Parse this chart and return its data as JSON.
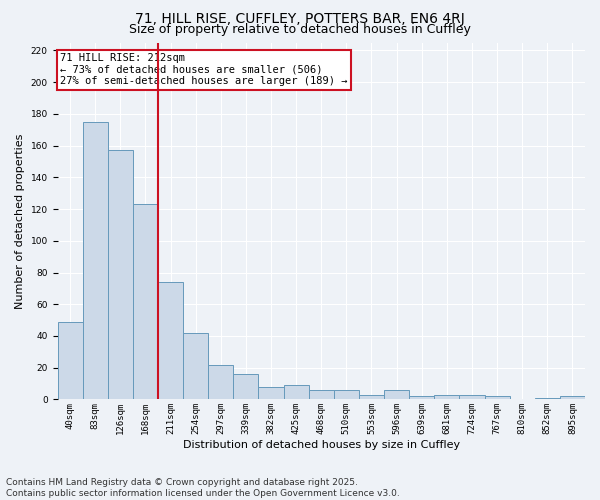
{
  "title_line1": "71, HILL RISE, CUFFLEY, POTTERS BAR, EN6 4RJ",
  "title_line2": "Size of property relative to detached houses in Cuffley",
  "xlabel": "Distribution of detached houses by size in Cuffley",
  "ylabel": "Number of detached properties",
  "categories": [
    "40sqm",
    "83sqm",
    "126sqm",
    "168sqm",
    "211sqm",
    "254sqm",
    "297sqm",
    "339sqm",
    "382sqm",
    "425sqm",
    "468sqm",
    "510sqm",
    "553sqm",
    "596sqm",
    "639sqm",
    "681sqm",
    "724sqm",
    "767sqm",
    "810sqm",
    "852sqm",
    "895sqm"
  ],
  "values": [
    49,
    175,
    157,
    123,
    74,
    42,
    22,
    16,
    8,
    9,
    6,
    6,
    3,
    6,
    2,
    3,
    3,
    2,
    0,
    1,
    2
  ],
  "bar_color": "#ccd9e8",
  "bar_edge_color": "#6699bb",
  "highlight_line_index": 3.5,
  "highlight_color": "#cc1122",
  "annotation_text": "71 HILL RISE: 212sqm\n← 73% of detached houses are smaller (506)\n27% of semi-detached houses are larger (189) →",
  "annotation_box_color": "#ffffff",
  "annotation_box_edge": "#cc1122",
  "ylim": [
    0,
    225
  ],
  "yticks": [
    0,
    20,
    40,
    60,
    80,
    100,
    120,
    140,
    160,
    180,
    200,
    220
  ],
  "background_color": "#eef2f7",
  "grid_color": "#ffffff",
  "footer": "Contains HM Land Registry data © Crown copyright and database right 2025.\nContains public sector information licensed under the Open Government Licence v3.0.",
  "title_fontsize": 10,
  "subtitle_fontsize": 9,
  "axis_label_fontsize": 8,
  "tick_fontsize": 6.5,
  "annotation_fontsize": 7.5,
  "footer_fontsize": 6.5
}
